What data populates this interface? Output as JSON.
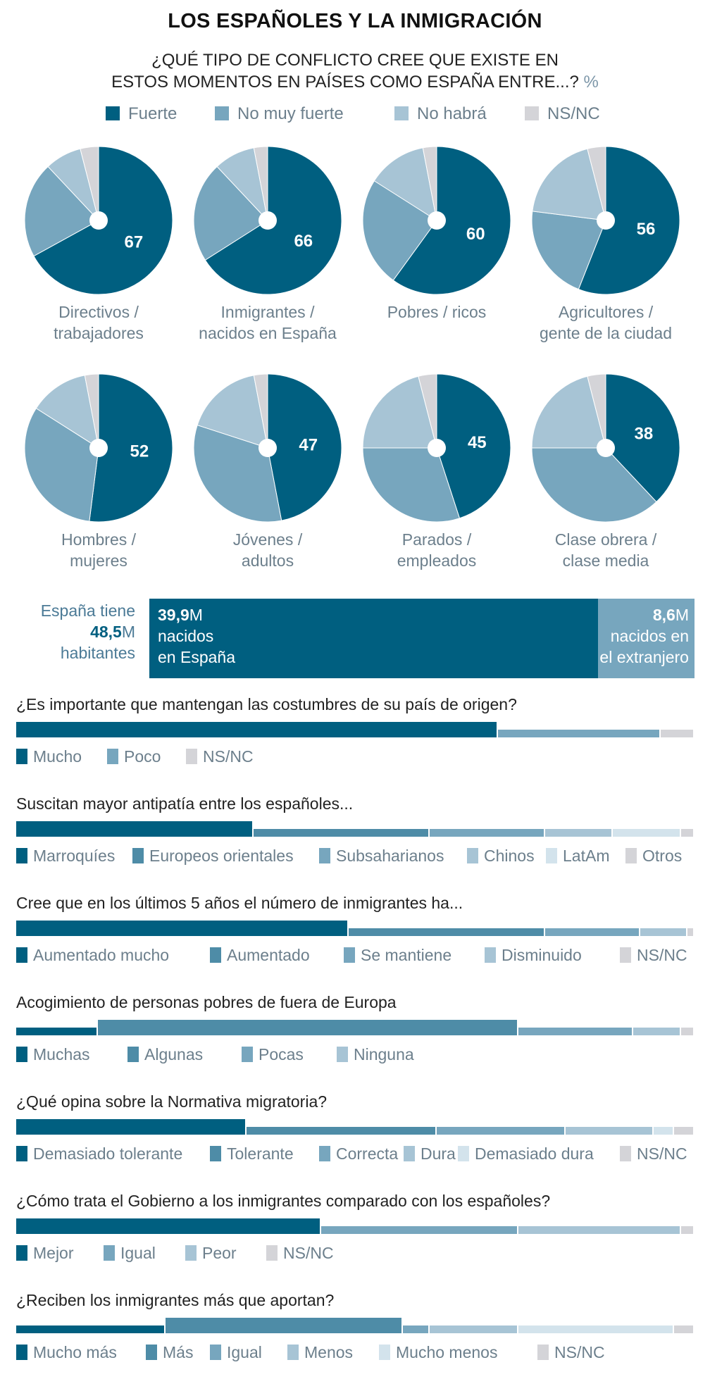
{
  "title": "LOS ESPAÑOLES Y LA INMIGRACIÓN",
  "subtitle_line1": "¿QUÉ TIPO DE CONFLICTO CREE QUE EXISTE EN",
  "subtitle_line2": "ESTOS MOMENTOS EN PAÍSES COMO ESPAÑA ENTRE...?",
  "subtitle_unit": "%",
  "colors": {
    "c1": "#005f80",
    "c2": "#4e8ca7",
    "c3": "#77a6be",
    "c4": "#a7c4d5",
    "c5": "#d3e3ec",
    "nsnc": "#d4d4d8"
  },
  "pie_legend": [
    {
      "label": "Fuerte",
      "color": "#005f80"
    },
    {
      "label": "No muy fuerte",
      "color": "#77a6be"
    },
    {
      "label": "No habrá",
      "color": "#a7c4d5"
    },
    {
      "label": "NS/NC",
      "color": "#d4d4d8"
    }
  ],
  "chart_data": [
    {
      "type": "pie",
      "title": "¿QUÉ TIPO DE CONFLICTO CREE QUE EXISTE EN ESTOS MOMENTOS EN PAÍSES COMO ESPAÑA ENTRE...? %",
      "series_names": [
        "Fuerte",
        "No muy fuerte",
        "No habrá",
        "NS/NC"
      ],
      "pies": [
        {
          "label1": "Directivos /",
          "label2": "trabajadores",
          "values": [
            67,
            21,
            8,
            4
          ]
        },
        {
          "label1": "Inmigrantes /",
          "label2": "nacidos en España",
          "values": [
            66,
            22,
            9,
            3
          ]
        },
        {
          "label1": "Pobres / ricos",
          "label2": "",
          "values": [
            60,
            24,
            13,
            3
          ]
        },
        {
          "label1": "Agricultores /",
          "label2": "gente de la ciudad",
          "values": [
            56,
            21,
            19,
            4
          ]
        },
        {
          "label1": "Hombres /",
          "label2": "mujeres",
          "values": [
            52,
            32,
            13,
            3
          ]
        },
        {
          "label1": "Jóvenes /",
          "label2": "adultos",
          "values": [
            47,
            33,
            17,
            3
          ]
        },
        {
          "label1": "Parados /",
          "label2": "empleados",
          "values": [
            45,
            30,
            21,
            4
          ]
        },
        {
          "label1": "Clase obrera /",
          "label2": "clase media",
          "values": [
            38,
            37,
            21,
            4
          ]
        }
      ]
    },
    {
      "type": "bar",
      "title": "España tiene 48,5M habitantes",
      "total": 48.5,
      "segments": [
        {
          "value": 39.9,
          "value_text": "39,9",
          "unit": "M",
          "line1": "nacidos",
          "line2": "en España",
          "color": "#005f80"
        },
        {
          "value": 8.6,
          "value_text": "8,6",
          "unit": "M",
          "line1": "nacidos en",
          "line2": "el extranjero",
          "color": "#77a6be"
        }
      ]
    },
    {
      "type": "bar",
      "stacked": true,
      "questions": [
        {
          "title": "¿Es importante que mantengan las costumbres de su país de origen?",
          "segments": [
            {
              "label": "Mucho",
              "value": 71,
              "color": "#005f80"
            },
            {
              "label": "Poco",
              "value": 24,
              "color": "#77a6be"
            },
            {
              "label": "NS/NC",
              "value": 5,
              "color": "#d4d4d8"
            }
          ]
        },
        {
          "title": "Suscitan mayor antipatía entre los españoles...",
          "segments": [
            {
              "label": "Marroquíes",
              "value": 35,
              "color": "#005f80"
            },
            {
              "label": "Europeos orientales",
              "value": 26,
              "color": "#4e8ca7"
            },
            {
              "label": "Subsaharianos",
              "value": 17,
              "color": "#77a6be"
            },
            {
              "label": "Chinos",
              "value": 10,
              "color": "#a7c4d5"
            },
            {
              "label": "LatAm",
              "value": 10,
              "color": "#d3e3ec"
            },
            {
              "label": "Otros",
              "value": 2,
              "color": "#d4d4d8"
            }
          ]
        },
        {
          "title": "Cree que en los últimos 5 años el número de inmigrantes ha...",
          "segments": [
            {
              "label": "Aumentado mucho",
              "value": 49,
              "color": "#005f80"
            },
            {
              "label": "Aumentado",
              "value": 29,
              "color": "#4e8ca7"
            },
            {
              "label": "Se mantiene",
              "value": 14,
              "color": "#77a6be"
            },
            {
              "label": "Disminuido",
              "value": 7,
              "color": "#a7c4d5"
            },
            {
              "label": "NS/NC",
              "value": 1,
              "color": "#d4d4d8"
            }
          ]
        },
        {
          "title": "Acogimiento de personas pobres de fuera de Europa",
          "segments": [
            {
              "label": "Muchas",
              "value": 12,
              "color": "#005f80"
            },
            {
              "label": "Algunas",
              "value": 62,
              "color": "#4e8ca7"
            },
            {
              "label": "Pocas",
              "value": 17,
              "color": "#77a6be"
            },
            {
              "label": "Ninguna",
              "value": 7,
              "color": "#a7c4d5"
            },
            {
              "label": "",
              "value": 2,
              "color": "#d4d4d8"
            }
          ]
        },
        {
          "title": "¿Qué opina sobre la Normativa migratoria?",
          "segments": [
            {
              "label": "Demasiado tolerante",
              "value": 34,
              "color": "#005f80"
            },
            {
              "label": "Tolerante",
              "value": 28,
              "color": "#4e8ca7"
            },
            {
              "label": "Correcta",
              "value": 19,
              "color": "#77a6be"
            },
            {
              "label": "Dura",
              "value": 13,
              "color": "#a7c4d5"
            },
            {
              "label": "Demasiado dura",
              "value": 3,
              "color": "#d3e3ec"
            },
            {
              "label": "NS/NC",
              "value": 3,
              "color": "#d4d4d8"
            }
          ]
        },
        {
          "title": "¿Cómo trata el Gobierno a los inmigrantes comparado con los españoles?",
          "segments": [
            {
              "label": "Mejor",
              "value": 45,
              "color": "#005f80"
            },
            {
              "label": "Igual",
              "value": 29,
              "color": "#77a6be"
            },
            {
              "label": "Peor",
              "value": 24,
              "color": "#a7c4d5"
            },
            {
              "label": "NS/NC",
              "value": 2,
              "color": "#d4d4d8"
            }
          ]
        },
        {
          "title": "¿Reciben los inmigrantes más que aportan?",
          "segments": [
            {
              "label": "Mucho más",
              "value": 22,
              "color": "#005f80"
            },
            {
              "label": "Más",
              "value": 35,
              "color": "#4e8ca7"
            },
            {
              "label": "Igual",
              "value": 4,
              "color": "#77a6be"
            },
            {
              "label": "Menos",
              "value": 13,
              "color": "#a7c4d5"
            },
            {
              "label": "Mucho menos",
              "value": 23,
              "color": "#d3e3ec"
            },
            {
              "label": "NS/NC",
              "value": 3,
              "color": "#d4d4d8"
            }
          ]
        }
      ]
    }
  ]
}
